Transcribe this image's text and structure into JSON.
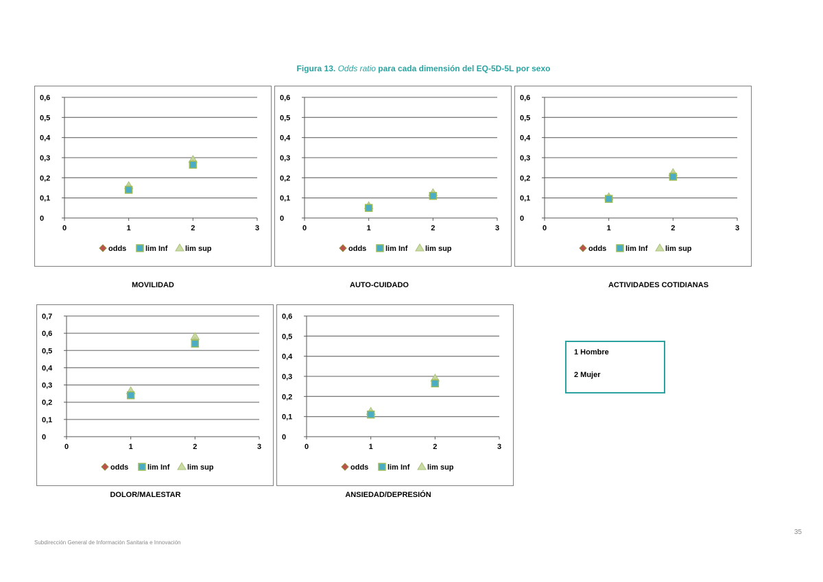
{
  "figure": {
    "label": "Figura 13.",
    "title_italic": "Odds ratio",
    "title_rest": "para cada dimensión del EQ-5D-5L por sexo"
  },
  "legend_box": {
    "line1": "1 Hombre",
    "line2": "2 Mujer"
  },
  "footer": {
    "text": "Subdirección General de Información Sanitaria e Innovación",
    "page_number": "35"
  },
  "colors": {
    "odds": "#c0504d",
    "lim_inf": "#4bacc6",
    "lim_sup": "#c4d79b",
    "gridline": "#7f7f7f",
    "accent": "#2aa3a0"
  },
  "chart_data": [
    {
      "type": "scatter",
      "caption": "MOVILIDAD",
      "xlim": [
        0,
        3
      ],
      "ylim": [
        0,
        0.6
      ],
      "xticks": [
        "0",
        "1",
        "2",
        "3"
      ],
      "yticks": [
        "0",
        "0,1",
        "0,2",
        "0,3",
        "0,4",
        "0,5",
        "0,6"
      ],
      "x": [
        1,
        2
      ],
      "series": [
        {
          "name": "odds",
          "values": [
            0.15,
            0.275
          ]
        },
        {
          "name": "lim Inf",
          "values": [
            0.14,
            0.265
          ]
        },
        {
          "name": "lim sup",
          "values": [
            0.16,
            0.29
          ]
        }
      ],
      "legend_position": "bottom"
    },
    {
      "type": "scatter",
      "caption": "AUTO-CUIDADO",
      "xlim": [
        0,
        3
      ],
      "ylim": [
        0,
        0.6
      ],
      "xticks": [
        "0",
        "1",
        "2",
        "3"
      ],
      "yticks": [
        "0",
        "0,1",
        "0,2",
        "0,3",
        "0,4",
        "0,5",
        "0,6"
      ],
      "x": [
        1,
        2
      ],
      "series": [
        {
          "name": "odds",
          "values": [
            0.055,
            0.115
          ]
        },
        {
          "name": "lim Inf",
          "values": [
            0.05,
            0.11
          ]
        },
        {
          "name": "lim sup",
          "values": [
            0.06,
            0.125
          ]
        }
      ],
      "legend_position": "bottom"
    },
    {
      "type": "scatter",
      "caption": "ACTIVIDADES COTIDIANAS",
      "xlim": [
        0,
        3
      ],
      "ylim": [
        0,
        0.6
      ],
      "xticks": [
        "0",
        "1",
        "2",
        "3"
      ],
      "yticks": [
        "0",
        "0,1",
        "0,2",
        "0,3",
        "0,4",
        "0,5",
        "0,6"
      ],
      "x": [
        1,
        2
      ],
      "series": [
        {
          "name": "odds",
          "values": [
            0.1,
            0.215
          ]
        },
        {
          "name": "lim Inf",
          "values": [
            0.095,
            0.205
          ]
        },
        {
          "name": "lim sup",
          "values": [
            0.105,
            0.225
          ]
        }
      ],
      "legend_position": "bottom"
    },
    {
      "type": "scatter",
      "caption": "DOLOR/MALESTAR",
      "xlim": [
        0,
        3
      ],
      "ylim": [
        0,
        0.7
      ],
      "xticks": [
        "0",
        "1",
        "2",
        "3"
      ],
      "yticks": [
        "0",
        "0,1",
        "0,2",
        "0,3",
        "0,4",
        "0,5",
        "0,6",
        "0,7"
      ],
      "x": [
        1,
        2
      ],
      "series": [
        {
          "name": "odds",
          "values": [
            0.25,
            0.56
          ]
        },
        {
          "name": "lim Inf",
          "values": [
            0.24,
            0.54
          ]
        },
        {
          "name": "lim sup",
          "values": [
            0.265,
            0.58
          ]
        }
      ],
      "legend_position": "bottom"
    },
    {
      "type": "scatter",
      "caption": "ANSIEDAD/DEPRESIÓN",
      "xlim": [
        0,
        3
      ],
      "ylim": [
        0,
        0.6
      ],
      "xticks": [
        "0",
        "1",
        "2",
        "3"
      ],
      "yticks": [
        "0",
        "0,1",
        "0,2",
        "0,3",
        "0,4",
        "0,5",
        "0,6"
      ],
      "x": [
        1,
        2
      ],
      "series": [
        {
          "name": "odds",
          "values": [
            0.115,
            0.275
          ]
        },
        {
          "name": "lim Inf",
          "values": [
            0.11,
            0.265
          ]
        },
        {
          "name": "lim sup",
          "values": [
            0.125,
            0.29
          ]
        }
      ],
      "legend_position": "bottom"
    }
  ]
}
